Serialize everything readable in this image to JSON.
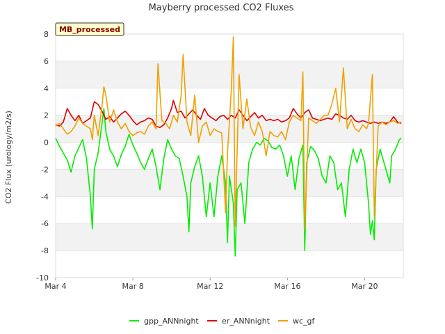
{
  "chart_data": {
    "type": "line",
    "title": "Mayberry processed CO2 Fluxes",
    "ylabel": "CO2 Flux (urology/m2/s)",
    "xlabel": "",
    "badge": "MB_processed",
    "x_range": [
      "Mar 4",
      "Mar 21.1"
    ],
    "xlim_days": [
      4.0,
      22.0
    ],
    "ylim": [
      -10,
      8
    ],
    "y_ticks": [
      -10,
      -8,
      -6,
      -4,
      -2,
      0,
      2,
      4,
      6,
      8
    ],
    "x_ticks": [
      {
        "label": "Mar 4",
        "day": 4
      },
      {
        "label": "Mar 8",
        "day": 8
      },
      {
        "label": "Mar 12",
        "day": 12
      },
      {
        "label": "Mar 16",
        "day": 16
      },
      {
        "label": "Mar 20",
        "day": 20
      }
    ],
    "grid": "horizontal bands",
    "legend_position": "bottom",
    "series": [
      {
        "name": "gpp_ANNnight",
        "color": "#00ee00",
        "points": [
          [
            4.0,
            0.3
          ],
          [
            4.2,
            -0.3
          ],
          [
            4.4,
            -0.8
          ],
          [
            4.6,
            -1.3
          ],
          [
            4.8,
            -2.2
          ],
          [
            5.0,
            -1.0
          ],
          [
            5.2,
            -0.4
          ],
          [
            5.4,
            0.2
          ],
          [
            5.6,
            -1.2
          ],
          [
            5.8,
            -4.0
          ],
          [
            5.9,
            -6.4
          ],
          [
            6.0,
            -2.0
          ],
          [
            6.2,
            -0.8
          ],
          [
            6.4,
            1.4
          ],
          [
            6.5,
            2.5
          ],
          [
            6.6,
            0.8
          ],
          [
            6.8,
            -0.5
          ],
          [
            7.0,
            -1.0
          ],
          [
            7.2,
            -1.8
          ],
          [
            7.4,
            -0.9
          ],
          [
            7.6,
            -0.3
          ],
          [
            7.8,
            0.6
          ],
          [
            8.0,
            -0.2
          ],
          [
            8.2,
            -0.8
          ],
          [
            8.4,
            -1.5
          ],
          [
            8.6,
            -2.0
          ],
          [
            8.8,
            -1.2
          ],
          [
            9.0,
            -0.5
          ],
          [
            9.2,
            -1.8
          ],
          [
            9.4,
            -3.5
          ],
          [
            9.6,
            -1.2
          ],
          [
            9.8,
            0.2
          ],
          [
            10.0,
            -0.5
          ],
          [
            10.2,
            -1.0
          ],
          [
            10.4,
            -1.2
          ],
          [
            10.6,
            -2.5
          ],
          [
            10.8,
            -4.0
          ],
          [
            10.9,
            -6.6
          ],
          [
            11.0,
            -3.0
          ],
          [
            11.2,
            -1.8
          ],
          [
            11.4,
            -1.0
          ],
          [
            11.6,
            -2.5
          ],
          [
            11.8,
            -5.5
          ],
          [
            12.0,
            -3.0
          ],
          [
            12.2,
            -5.5
          ],
          [
            12.4,
            -2.5
          ],
          [
            12.6,
            -1.0
          ],
          [
            12.8,
            -3.0
          ],
          [
            12.9,
            -7.4
          ],
          [
            13.0,
            -2.5
          ],
          [
            13.2,
            -4.5
          ],
          [
            13.3,
            -8.4
          ],
          [
            13.4,
            -3.5
          ],
          [
            13.6,
            -3.0
          ],
          [
            13.8,
            -6.0
          ],
          [
            14.0,
            -1.5
          ],
          [
            14.2,
            -0.5
          ],
          [
            14.4,
            0.0
          ],
          [
            14.6,
            -0.2
          ],
          [
            14.8,
            0.3
          ],
          [
            15.0,
            0.1
          ],
          [
            15.2,
            -0.4
          ],
          [
            15.4,
            -0.5
          ],
          [
            15.6,
            -0.2
          ],
          [
            15.8,
            -1.0
          ],
          [
            16.0,
            -2.5
          ],
          [
            16.2,
            -1.0
          ],
          [
            16.4,
            -3.5
          ],
          [
            16.6,
            -1.2
          ],
          [
            16.8,
            -0.2
          ],
          [
            16.9,
            -8.0
          ],
          [
            17.0,
            -1.5
          ],
          [
            17.2,
            -0.3
          ],
          [
            17.4,
            -0.6
          ],
          [
            17.6,
            -1.2
          ],
          [
            17.8,
            -2.5
          ],
          [
            18.0,
            -3.0
          ],
          [
            18.2,
            -1.0
          ],
          [
            18.4,
            -1.5
          ],
          [
            18.6,
            -3.5
          ],
          [
            18.8,
            -3.0
          ],
          [
            19.0,
            -5.5
          ],
          [
            19.2,
            -2.0
          ],
          [
            19.4,
            -0.5
          ],
          [
            19.6,
            -1.5
          ],
          [
            19.8,
            -0.5
          ],
          [
            20.0,
            -1.5
          ],
          [
            20.2,
            -4.5
          ],
          [
            20.3,
            -6.8
          ],
          [
            20.4,
            -5.8
          ],
          [
            20.5,
            -7.2
          ],
          [
            20.6,
            -2.0
          ],
          [
            20.8,
            -0.5
          ],
          [
            21.0,
            -1.5
          ],
          [
            21.2,
            -2.5
          ],
          [
            21.3,
            -3.0
          ],
          [
            21.4,
            -1.0
          ],
          [
            21.6,
            -0.5
          ],
          [
            21.8,
            0.2
          ],
          [
            21.9,
            0.3
          ]
        ]
      },
      {
        "name": "er_ANNnight",
        "color": "#dd0000",
        "points": [
          [
            4.0,
            1.3
          ],
          [
            4.2,
            1.2
          ],
          [
            4.4,
            1.5
          ],
          [
            4.6,
            2.5
          ],
          [
            4.8,
            2.0
          ],
          [
            5.0,
            1.6
          ],
          [
            5.2,
            2.0
          ],
          [
            5.4,
            1.4
          ],
          [
            5.6,
            1.6
          ],
          [
            5.8,
            1.8
          ],
          [
            6.0,
            3.0
          ],
          [
            6.2,
            2.8
          ],
          [
            6.4,
            2.3
          ],
          [
            6.6,
            1.7
          ],
          [
            6.8,
            1.9
          ],
          [
            7.0,
            1.5
          ],
          [
            7.2,
            1.8
          ],
          [
            7.4,
            2.1
          ],
          [
            7.6,
            2.3
          ],
          [
            7.8,
            2.0
          ],
          [
            8.0,
            1.6
          ],
          [
            8.2,
            1.3
          ],
          [
            8.4,
            1.5
          ],
          [
            8.6,
            1.6
          ],
          [
            8.8,
            1.8
          ],
          [
            9.0,
            1.7
          ],
          [
            9.2,
            1.2
          ],
          [
            9.4,
            1.1
          ],
          [
            9.6,
            1.3
          ],
          [
            9.8,
            1.8
          ],
          [
            10.0,
            2.5
          ],
          [
            10.1,
            3.1
          ],
          [
            10.3,
            2.2
          ],
          [
            10.5,
            2.3
          ],
          [
            10.7,
            1.8
          ],
          [
            10.9,
            2.1
          ],
          [
            11.1,
            2.4
          ],
          [
            11.3,
            2.0
          ],
          [
            11.5,
            1.7
          ],
          [
            11.7,
            2.5
          ],
          [
            11.9,
            2.0
          ],
          [
            12.1,
            1.8
          ],
          [
            12.3,
            1.6
          ],
          [
            12.5,
            1.9
          ],
          [
            12.7,
            2.0
          ],
          [
            12.9,
            1.7
          ],
          [
            13.1,
            2.0
          ],
          [
            13.3,
            1.8
          ],
          [
            13.5,
            2.4
          ],
          [
            13.7,
            2.0
          ],
          [
            13.9,
            1.6
          ],
          [
            14.1,
            1.9
          ],
          [
            14.3,
            2.2
          ],
          [
            14.5,
            1.8
          ],
          [
            14.7,
            2.0
          ],
          [
            14.9,
            1.6
          ],
          [
            15.1,
            1.7
          ],
          [
            15.3,
            1.6
          ],
          [
            15.5,
            1.7
          ],
          [
            15.7,
            1.5
          ],
          [
            15.9,
            1.6
          ],
          [
            16.1,
            1.8
          ],
          [
            16.3,
            2.5
          ],
          [
            16.5,
            2.1
          ],
          [
            16.7,
            1.8
          ],
          [
            16.9,
            2.2
          ],
          [
            17.1,
            2.4
          ],
          [
            17.3,
            1.8
          ],
          [
            17.5,
            1.7
          ],
          [
            17.7,
            1.6
          ],
          [
            17.9,
            1.7
          ],
          [
            18.1,
            1.8
          ],
          [
            18.3,
            1.7
          ],
          [
            18.5,
            2.1
          ],
          [
            18.7,
            2.0
          ],
          [
            18.9,
            1.8
          ],
          [
            19.1,
            1.7
          ],
          [
            19.3,
            2.0
          ],
          [
            19.5,
            1.6
          ],
          [
            19.7,
            1.5
          ],
          [
            19.9,
            1.6
          ],
          [
            20.1,
            1.5
          ],
          [
            20.3,
            1.4
          ],
          [
            20.5,
            1.5
          ],
          [
            20.7,
            1.4
          ],
          [
            20.9,
            1.5
          ],
          [
            21.1,
            1.4
          ],
          [
            21.3,
            1.5
          ],
          [
            21.5,
            1.9
          ],
          [
            21.7,
            1.5
          ],
          [
            21.9,
            1.4
          ]
        ]
      },
      {
        "name": "wc_gf",
        "color": "#f0a000",
        "points": [
          [
            4.0,
            1.2
          ],
          [
            4.2,
            1.4
          ],
          [
            4.4,
            1.0
          ],
          [
            4.6,
            0.6
          ],
          [
            4.8,
            0.8
          ],
          [
            5.0,
            1.2
          ],
          [
            5.2,
            1.8
          ],
          [
            5.4,
            1.4
          ],
          [
            5.6,
            1.2
          ],
          [
            5.8,
            1.0
          ],
          [
            5.9,
            0.2
          ],
          [
            6.0,
            2.0
          ],
          [
            6.2,
            0.5
          ],
          [
            6.4,
            2.7
          ],
          [
            6.5,
            4.1
          ],
          [
            6.6,
            3.5
          ],
          [
            6.8,
            1.5
          ],
          [
            7.0,
            2.4
          ],
          [
            7.2,
            1.5
          ],
          [
            7.4,
            1.0
          ],
          [
            7.6,
            1.4
          ],
          [
            7.8,
            0.8
          ],
          [
            8.0,
            0.5
          ],
          [
            8.2,
            0.7
          ],
          [
            8.4,
            0.8
          ],
          [
            8.6,
            0.6
          ],
          [
            8.8,
            1.2
          ],
          [
            9.0,
            1.5
          ],
          [
            9.2,
            1.0
          ],
          [
            9.3,
            5.8
          ],
          [
            9.5,
            1.6
          ],
          [
            9.7,
            1.4
          ],
          [
            9.9,
            1.0
          ],
          [
            10.1,
            2.0
          ],
          [
            10.3,
            1.5
          ],
          [
            10.5,
            3.5
          ],
          [
            10.6,
            6.5
          ],
          [
            10.8,
            1.5
          ],
          [
            11.0,
            0.5
          ],
          [
            11.2,
            3.5
          ],
          [
            11.4,
            0.0
          ],
          [
            11.6,
            1.2
          ],
          [
            11.8,
            1.5
          ],
          [
            12.0,
            0.5
          ],
          [
            12.2,
            1.0
          ],
          [
            12.4,
            0.8
          ],
          [
            12.6,
            0.7
          ],
          [
            12.8,
            -5.2
          ],
          [
            12.9,
            -0.8
          ],
          [
            13.1,
            4.0
          ],
          [
            13.2,
            7.8
          ],
          [
            13.3,
            -6.2
          ],
          [
            13.5,
            5.0
          ],
          [
            13.7,
            1.0
          ],
          [
            13.9,
            3.2
          ],
          [
            14.1,
            1.1
          ],
          [
            14.3,
            0.5
          ],
          [
            14.5,
            1.5
          ],
          [
            14.7,
            0.8
          ],
          [
            14.9,
            -1.0
          ],
          [
            15.1,
            0.8
          ],
          [
            15.3,
            0.5
          ],
          [
            15.5,
            0.4
          ],
          [
            15.7,
            0.8
          ],
          [
            15.9,
            0.2
          ],
          [
            16.1,
            1.5
          ],
          [
            16.3,
            2.0
          ],
          [
            16.5,
            1.8
          ],
          [
            16.7,
            1.6
          ],
          [
            16.8,
            5.2
          ],
          [
            16.9,
            -6.4
          ],
          [
            17.1,
            1.8
          ],
          [
            17.3,
            1.6
          ],
          [
            17.5,
            1.4
          ],
          [
            17.7,
            1.7
          ],
          [
            17.9,
            2.0
          ],
          [
            18.1,
            2.0
          ],
          [
            18.3,
            2.8
          ],
          [
            18.5,
            4.0
          ],
          [
            18.7,
            1.5
          ],
          [
            18.9,
            5.5
          ],
          [
            19.1,
            1.0
          ],
          [
            19.3,
            1.7
          ],
          [
            19.5,
            1.0
          ],
          [
            19.7,
            0.8
          ],
          [
            19.9,
            1.3
          ],
          [
            20.1,
            1.0
          ],
          [
            20.2,
            1.4
          ],
          [
            20.4,
            5.0
          ],
          [
            20.5,
            -5.5
          ],
          [
            20.7,
            1.2
          ],
          [
            20.9,
            1.5
          ],
          [
            21.1,
            1.3
          ],
          [
            21.3,
            1.5
          ],
          [
            21.5,
            1.6
          ],
          [
            21.7,
            1.4
          ],
          [
            21.9,
            1.5
          ]
        ]
      }
    ]
  }
}
